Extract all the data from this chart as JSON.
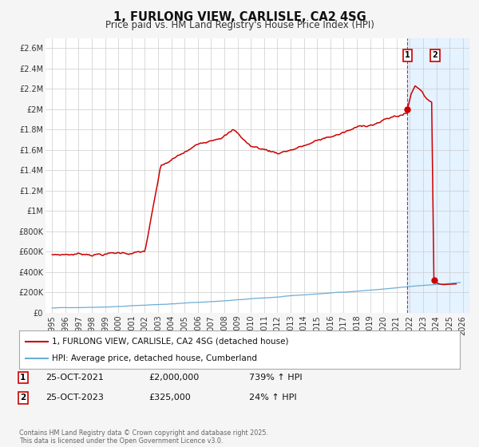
{
  "title": "1, FURLONG VIEW, CARLISLE, CA2 4SG",
  "subtitle": "Price paid vs. HM Land Registry's House Price Index (HPI)",
  "ylim": [
    0,
    2700000
  ],
  "xlim": [
    1994.5,
    2026.5
  ],
  "yticks": [
    0,
    200000,
    400000,
    600000,
    800000,
    1000000,
    1200000,
    1400000,
    1600000,
    1800000,
    2000000,
    2200000,
    2400000,
    2600000
  ],
  "ytick_labels": [
    "£0",
    "£200K",
    "£400K",
    "£600K",
    "£800K",
    "£1M",
    "£1.2M",
    "£1.4M",
    "£1.6M",
    "£1.8M",
    "£2M",
    "£2.2M",
    "£2.4M",
    "£2.6M"
  ],
  "xticks": [
    1995,
    1996,
    1997,
    1998,
    1999,
    2000,
    2001,
    2002,
    2003,
    2004,
    2005,
    2006,
    2007,
    2008,
    2009,
    2010,
    2011,
    2012,
    2013,
    2014,
    2015,
    2016,
    2017,
    2018,
    2019,
    2020,
    2021,
    2022,
    2023,
    2024,
    2025,
    2026
  ],
  "hpi_color": "#6baed6",
  "price_color": "#cc0000",
  "grid_color": "#cccccc",
  "bg_color": "#f5f5f5",
  "plot_bg": "#ffffff",
  "shaded_region_color": "#ddeeff",
  "vline_color": "#cc0000",
  "vline_x": 2021.82,
  "sale1_x": 2021.82,
  "sale1_y": 2000000,
  "sale2_x": 2023.82,
  "sale2_y": 325000,
  "legend_label_price": "1, FURLONG VIEW, CARLISLE, CA2 4SG (detached house)",
  "legend_label_hpi": "HPI: Average price, detached house, Cumberland",
  "table_row1": [
    "1",
    "25-OCT-2021",
    "£2,000,000",
    "739% ↑ HPI"
  ],
  "table_row2": [
    "2",
    "25-OCT-2023",
    "£325,000",
    "24% ↑ HPI"
  ],
  "footer": "Contains HM Land Registry data © Crown copyright and database right 2025.\nThis data is licensed under the Open Government Licence v3.0.",
  "title_fontsize": 10.5,
  "subtitle_fontsize": 8.5,
  "tick_fontsize": 7,
  "legend_fontsize": 7.5,
  "table_fontsize": 8
}
